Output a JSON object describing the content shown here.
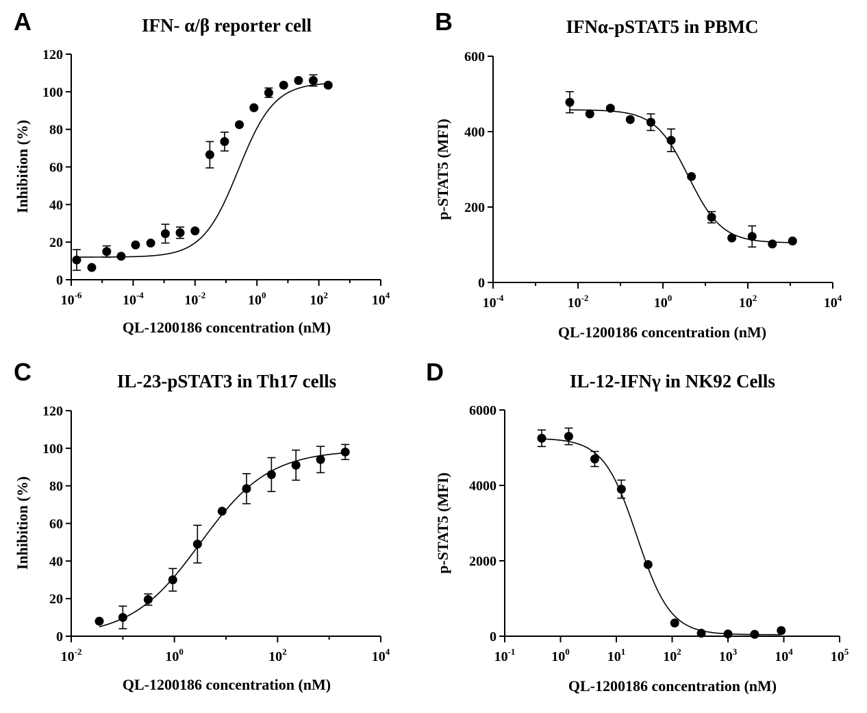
{
  "chart_data": [
    {
      "panel": "A",
      "type": "scatter",
      "title": "IFN- α/β reporter cell",
      "xlabel": "QL-1200186 concentration (nM)",
      "ylabel": "Inhibition (%)",
      "xscale": "log",
      "xlim_log10": [
        -6,
        4
      ],
      "xticks_log10": [
        -6,
        -4,
        -2,
        0,
        2,
        4
      ],
      "ylim": [
        0,
        120
      ],
      "yticks": [
        0,
        20,
        40,
        60,
        80,
        100,
        120
      ],
      "fit": {
        "bottom": 12,
        "top": 105,
        "logEC50": -0.6,
        "hill": 0.75
      },
      "points": [
        {
          "x": 1.5e-06,
          "y": 10.5,
          "err": 5.5
        },
        {
          "x": 4.6e-06,
          "y": 6.5,
          "err": 0
        },
        {
          "x": 1.4e-05,
          "y": 15,
          "err": 3
        },
        {
          "x": 4.1e-05,
          "y": 12.5,
          "err": 0
        },
        {
          "x": 0.00012,
          "y": 18.5,
          "err": 0
        },
        {
          "x": 0.00037,
          "y": 19.5,
          "err": 0
        },
        {
          "x": 0.0011,
          "y": 24.5,
          "err": 5
        },
        {
          "x": 0.0033,
          "y": 25,
          "err": 3
        },
        {
          "x": 0.01,
          "y": 26,
          "err": 0
        },
        {
          "x": 0.03,
          "y": 66.5,
          "err": 7
        },
        {
          "x": 0.09,
          "y": 73.5,
          "err": 5
        },
        {
          "x": 0.27,
          "y": 82.5,
          "err": 0
        },
        {
          "x": 0.8,
          "y": 91.5,
          "err": 0
        },
        {
          "x": 2.4,
          "y": 99.5,
          "err": 2.5
        },
        {
          "x": 7.3,
          "y": 103.5,
          "err": 0
        },
        {
          "x": 22,
          "y": 106,
          "err": 0
        },
        {
          "x": 66,
          "y": 106,
          "err": 3
        },
        {
          "x": 200,
          "y": 103.5,
          "err": 0
        }
      ]
    },
    {
      "panel": "B",
      "type": "scatter",
      "title": "IFNα-pSTAT5 in PBMC",
      "xlabel": "QL-1200186 concentration (nM)",
      "ylabel": "p-STAT5 (MFI)",
      "xscale": "log",
      "xlim_log10": [
        -4,
        4
      ],
      "xticks_log10": [
        -4,
        -2,
        0,
        2,
        4
      ],
      "ylim": [
        0,
        600
      ],
      "yticks": [
        0,
        200,
        400,
        600
      ],
      "fit": {
        "bottom": 105,
        "top": 458,
        "logEC50": 0.6,
        "hill": -1.1
      },
      "points": [
        {
          "x": 0.0064,
          "y": 478,
          "err": 28
        },
        {
          "x": 0.019,
          "y": 447,
          "err": 0
        },
        {
          "x": 0.058,
          "y": 462,
          "err": 0
        },
        {
          "x": 0.17,
          "y": 432,
          "err": 0
        },
        {
          "x": 0.52,
          "y": 425,
          "err": 22
        },
        {
          "x": 1.56,
          "y": 377,
          "err": 30
        },
        {
          "x": 4.7,
          "y": 281,
          "err": 0
        },
        {
          "x": 14,
          "y": 173,
          "err": 15
        },
        {
          "x": 42,
          "y": 118,
          "err": 0
        },
        {
          "x": 126,
          "y": 122,
          "err": 28
        },
        {
          "x": 378,
          "y": 102,
          "err": 0
        },
        {
          "x": 1130,
          "y": 110,
          "err": 0
        }
      ]
    },
    {
      "panel": "C",
      "type": "scatter",
      "title": "IL-23-pSTAT3 in Th17 cells",
      "xlabel": "QL-1200186 concentration (nM)",
      "ylabel": "Inhibition (%)",
      "xscale": "log",
      "xlim_log10": [
        -2,
        4
      ],
      "xticks_log10": [
        -2,
        0,
        2,
        4
      ],
      "ylim": [
        0,
        120
      ],
      "yticks": [
        0,
        20,
        40,
        60,
        80,
        100,
        120
      ],
      "fit": {
        "bottom": 0,
        "top": 99,
        "logEC50": 0.5,
        "hill": 0.65
      },
      "points": [
        {
          "x": 0.035,
          "y": 8,
          "err": 0
        },
        {
          "x": 0.1,
          "y": 10,
          "err": 6
        },
        {
          "x": 0.31,
          "y": 19.5,
          "err": 3
        },
        {
          "x": 0.93,
          "y": 30,
          "err": 6
        },
        {
          "x": 2.8,
          "y": 49,
          "err": 10
        },
        {
          "x": 8.4,
          "y": 66.5,
          "err": 0
        },
        {
          "x": 25,
          "y": 78.5,
          "err": 8
        },
        {
          "x": 76,
          "y": 86,
          "err": 9
        },
        {
          "x": 227,
          "y": 91,
          "err": 8
        },
        {
          "x": 680,
          "y": 94,
          "err": 7
        },
        {
          "x": 2050,
          "y": 98,
          "err": 4
        }
      ]
    },
    {
      "panel": "D",
      "type": "scatter",
      "title": "IL-12-IFNγ in NK92 Cells",
      "xlabel": "QL-1200186 concentration (nM)",
      "ylabel": "p-STAT5 (MFI)",
      "xscale": "log",
      "xlim_log10": [
        -1,
        5
      ],
      "xticks_log10": [
        -1,
        0,
        1,
        2,
        3,
        4,
        5
      ],
      "ylim": [
        0,
        6000
      ],
      "yticks": [
        0,
        2000,
        4000,
        6000
      ],
      "fit": {
        "bottom": 40,
        "top": 5250,
        "logEC50": 1.37,
        "hill": -1.45
      },
      "points": [
        {
          "x": 0.46,
          "y": 5250,
          "err": 220
        },
        {
          "x": 1.4,
          "y": 5300,
          "err": 220
        },
        {
          "x": 4.1,
          "y": 4700,
          "err": 200
        },
        {
          "x": 12.3,
          "y": 3900,
          "err": 240
        },
        {
          "x": 37,
          "y": 1900,
          "err": 0
        },
        {
          "x": 111,
          "y": 350,
          "err": 0
        },
        {
          "x": 333,
          "y": 80,
          "err": 0
        },
        {
          "x": 1000,
          "y": 60,
          "err": 0
        },
        {
          "x": 3000,
          "y": 50,
          "err": 0
        },
        {
          "x": 9000,
          "y": 150,
          "err": 0
        }
      ]
    }
  ]
}
